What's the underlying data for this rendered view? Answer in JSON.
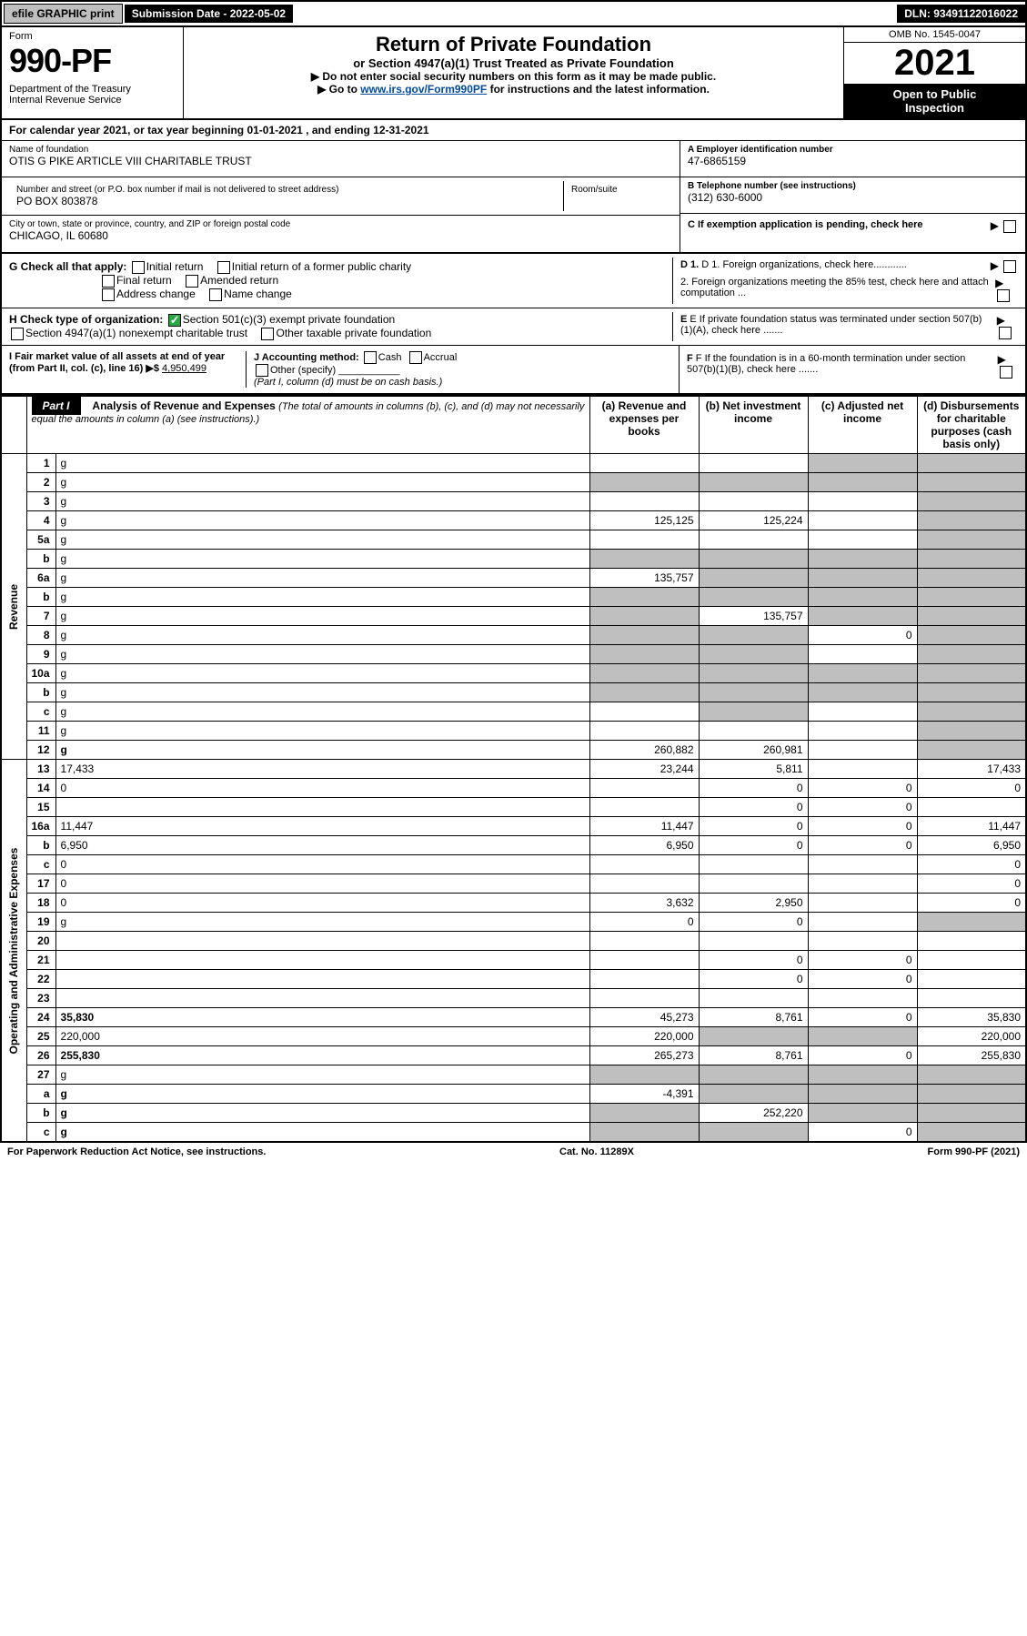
{
  "topbar": {
    "efile": "efile GRAPHIC print",
    "submission_label": "Submission Date - 2022-05-02",
    "dln": "DLN: 93491122016022"
  },
  "header": {
    "form_label": "Form",
    "form_number": "990-PF",
    "dept": "Department of the Treasury\nInternal Revenue Service",
    "title": "Return of Private Foundation",
    "subtitle": "or Section 4947(a)(1) Trust Treated as Private Foundation",
    "note1": "▶ Do not enter social security numbers on this form as it may be made public.",
    "note2_pre": "▶ Go to ",
    "note2_link": "www.irs.gov/Form990PF",
    "note2_post": " for instructions and the latest information.",
    "omb": "OMB No. 1545-0047",
    "year": "2021",
    "open_public": "Open to Public\nInspection"
  },
  "calendar": "For calendar year 2021, or tax year beginning 01-01-2021                  , and ending 12-31-2021",
  "entity": {
    "name_label": "Name of foundation",
    "name": "OTIS G PIKE ARTICLE VIII CHARITABLE TRUST",
    "addr_label": "Number and street (or P.O. box number if mail is not delivered to street address)",
    "room_label": "Room/suite",
    "addr": "PO BOX 803878",
    "city_label": "City or town, state or province, country, and ZIP or foreign postal code",
    "city": "CHICAGO, IL  60680",
    "a_label": "A Employer identification number",
    "a_val": "47-6865159",
    "b_label": "B Telephone number (see instructions)",
    "b_val": "(312) 630-6000",
    "c_label": "C If exemption application is pending, check here"
  },
  "checks": {
    "g_label": "G Check all that apply:",
    "g_opts": [
      "Initial return",
      "Initial return of a former public charity",
      "Final return",
      "Amended return",
      "Address change",
      "Name change"
    ],
    "h_label": "H Check type of organization:",
    "h_opt1": "Section 501(c)(3) exempt private foundation",
    "h_opt2": "Section 4947(a)(1) nonexempt charitable trust",
    "h_opt3": "Other taxable private foundation",
    "i_label": "I Fair market value of all assets at end of year (from Part II, col. (c), line 16) ▶$",
    "i_val": "4,950,499",
    "j_label": "J Accounting method:",
    "j_cash": "Cash",
    "j_accrual": "Accrual",
    "j_other": "Other (specify)",
    "j_note": "(Part I, column (d) must be on cash basis.)",
    "d1": "D 1. Foreign organizations, check here............",
    "d2": "2. Foreign organizations meeting the 85% test, check here and attach computation ...",
    "e_label": "E  If private foundation status was terminated under section 507(b)(1)(A), check here .......",
    "f_label": "F  If the foundation is in a 60-month termination under section 507(b)(1)(B), check here .......",
    "arrow": "▶"
  },
  "part1": {
    "label": "Part I",
    "title": "Analysis of Revenue and Expenses",
    "title_note": " (The total of amounts in columns (b), (c), and (d) may not necessarily equal the amounts in column (a) (see instructions).)",
    "col_a": "(a)   Revenue and expenses per books",
    "col_b": "(b)   Net investment income",
    "col_c": "(c)   Adjusted net income",
    "col_d": "(d)   Disbursements for charitable purposes (cash basis only)"
  },
  "vert": {
    "revenue": "Revenue",
    "expenses": "Operating and Administrative Expenses"
  },
  "rows": [
    {
      "n": "1",
      "d": "g",
      "a": "",
      "b": "",
      "c": "g"
    },
    {
      "n": "2",
      "d": "g",
      "a": "g",
      "b": "g",
      "c": "g"
    },
    {
      "n": "3",
      "d": "g",
      "a": "",
      "b": "",
      "c": ""
    },
    {
      "n": "4",
      "d": "g",
      "a": "125,125",
      "b": "125,224",
      "c": ""
    },
    {
      "n": "5a",
      "d": "g",
      "a": "",
      "b": "",
      "c": ""
    },
    {
      "n": "b",
      "d": "g",
      "a": "g",
      "b": "g",
      "c": "g"
    },
    {
      "n": "6a",
      "d": "g",
      "a": "135,757",
      "b": "g",
      "c": "g"
    },
    {
      "n": "b",
      "d": "g",
      "a": "g",
      "b": "g",
      "c": "g"
    },
    {
      "n": "7",
      "d": "g",
      "a": "g",
      "b": "135,757",
      "c": "g"
    },
    {
      "n": "8",
      "d": "g",
      "a": "g",
      "b": "g",
      "c": "0"
    },
    {
      "n": "9",
      "d": "g",
      "a": "g",
      "b": "g",
      "c": ""
    },
    {
      "n": "10a",
      "d": "g",
      "a": "g",
      "b": "g",
      "c": "g"
    },
    {
      "n": "b",
      "d": "g",
      "a": "g",
      "b": "g",
      "c": "g"
    },
    {
      "n": "c",
      "d": "g",
      "a": "",
      "b": "g",
      "c": ""
    },
    {
      "n": "11",
      "d": "g",
      "a": "",
      "b": "",
      "c": ""
    },
    {
      "n": "12",
      "d": "g",
      "a": "260,882",
      "b": "260,981",
      "c": "",
      "bold": true
    },
    {
      "n": "13",
      "d": "17,433",
      "a": "23,244",
      "b": "5,811",
      "c": ""
    },
    {
      "n": "14",
      "d": "0",
      "a": "",
      "b": "0",
      "c": "0"
    },
    {
      "n": "15",
      "d": "",
      "a": "",
      "b": "0",
      "c": "0"
    },
    {
      "n": "16a",
      "d": "11,447",
      "a": "11,447",
      "b": "0",
      "c": "0"
    },
    {
      "n": "b",
      "d": "6,950",
      "a": "6,950",
      "b": "0",
      "c": "0"
    },
    {
      "n": "c",
      "d": "0",
      "a": "",
      "b": "",
      "c": ""
    },
    {
      "n": "17",
      "d": "0",
      "a": "",
      "b": "",
      "c": ""
    },
    {
      "n": "18",
      "d": "0",
      "a": "3,632",
      "b": "2,950",
      "c": ""
    },
    {
      "n": "19",
      "d": "g",
      "a": "0",
      "b": "0",
      "c": ""
    },
    {
      "n": "20",
      "d": "",
      "a": "",
      "b": "",
      "c": ""
    },
    {
      "n": "21",
      "d": "",
      "a": "",
      "b": "0",
      "c": "0"
    },
    {
      "n": "22",
      "d": "",
      "a": "",
      "b": "0",
      "c": "0"
    },
    {
      "n": "23",
      "d": "",
      "a": "",
      "b": "",
      "c": ""
    },
    {
      "n": "24",
      "d": "35,830",
      "a": "45,273",
      "b": "8,761",
      "c": "0",
      "bold": true
    },
    {
      "n": "25",
      "d": "220,000",
      "a": "220,000",
      "b": "g",
      "c": "g"
    },
    {
      "n": "26",
      "d": "255,830",
      "a": "265,273",
      "b": "8,761",
      "c": "0",
      "bold": true
    },
    {
      "n": "27",
      "d": "g",
      "a": "g",
      "b": "g",
      "c": "g"
    },
    {
      "n": "a",
      "d": "g",
      "a": "-4,391",
      "b": "g",
      "c": "g",
      "bold": true
    },
    {
      "n": "b",
      "d": "g",
      "a": "g",
      "b": "252,220",
      "c": "g",
      "bold": true
    },
    {
      "n": "c",
      "d": "g",
      "a": "g",
      "b": "g",
      "c": "0",
      "bold": true
    }
  ],
  "footer": {
    "left": "For Paperwork Reduction Act Notice, see instructions.",
    "mid": "Cat. No. 11289X",
    "right": "Form 990-PF (2021)"
  },
  "colors": {
    "grey": "#bfbfbf",
    "link": "#004b9b",
    "check_green": "#27a844"
  }
}
